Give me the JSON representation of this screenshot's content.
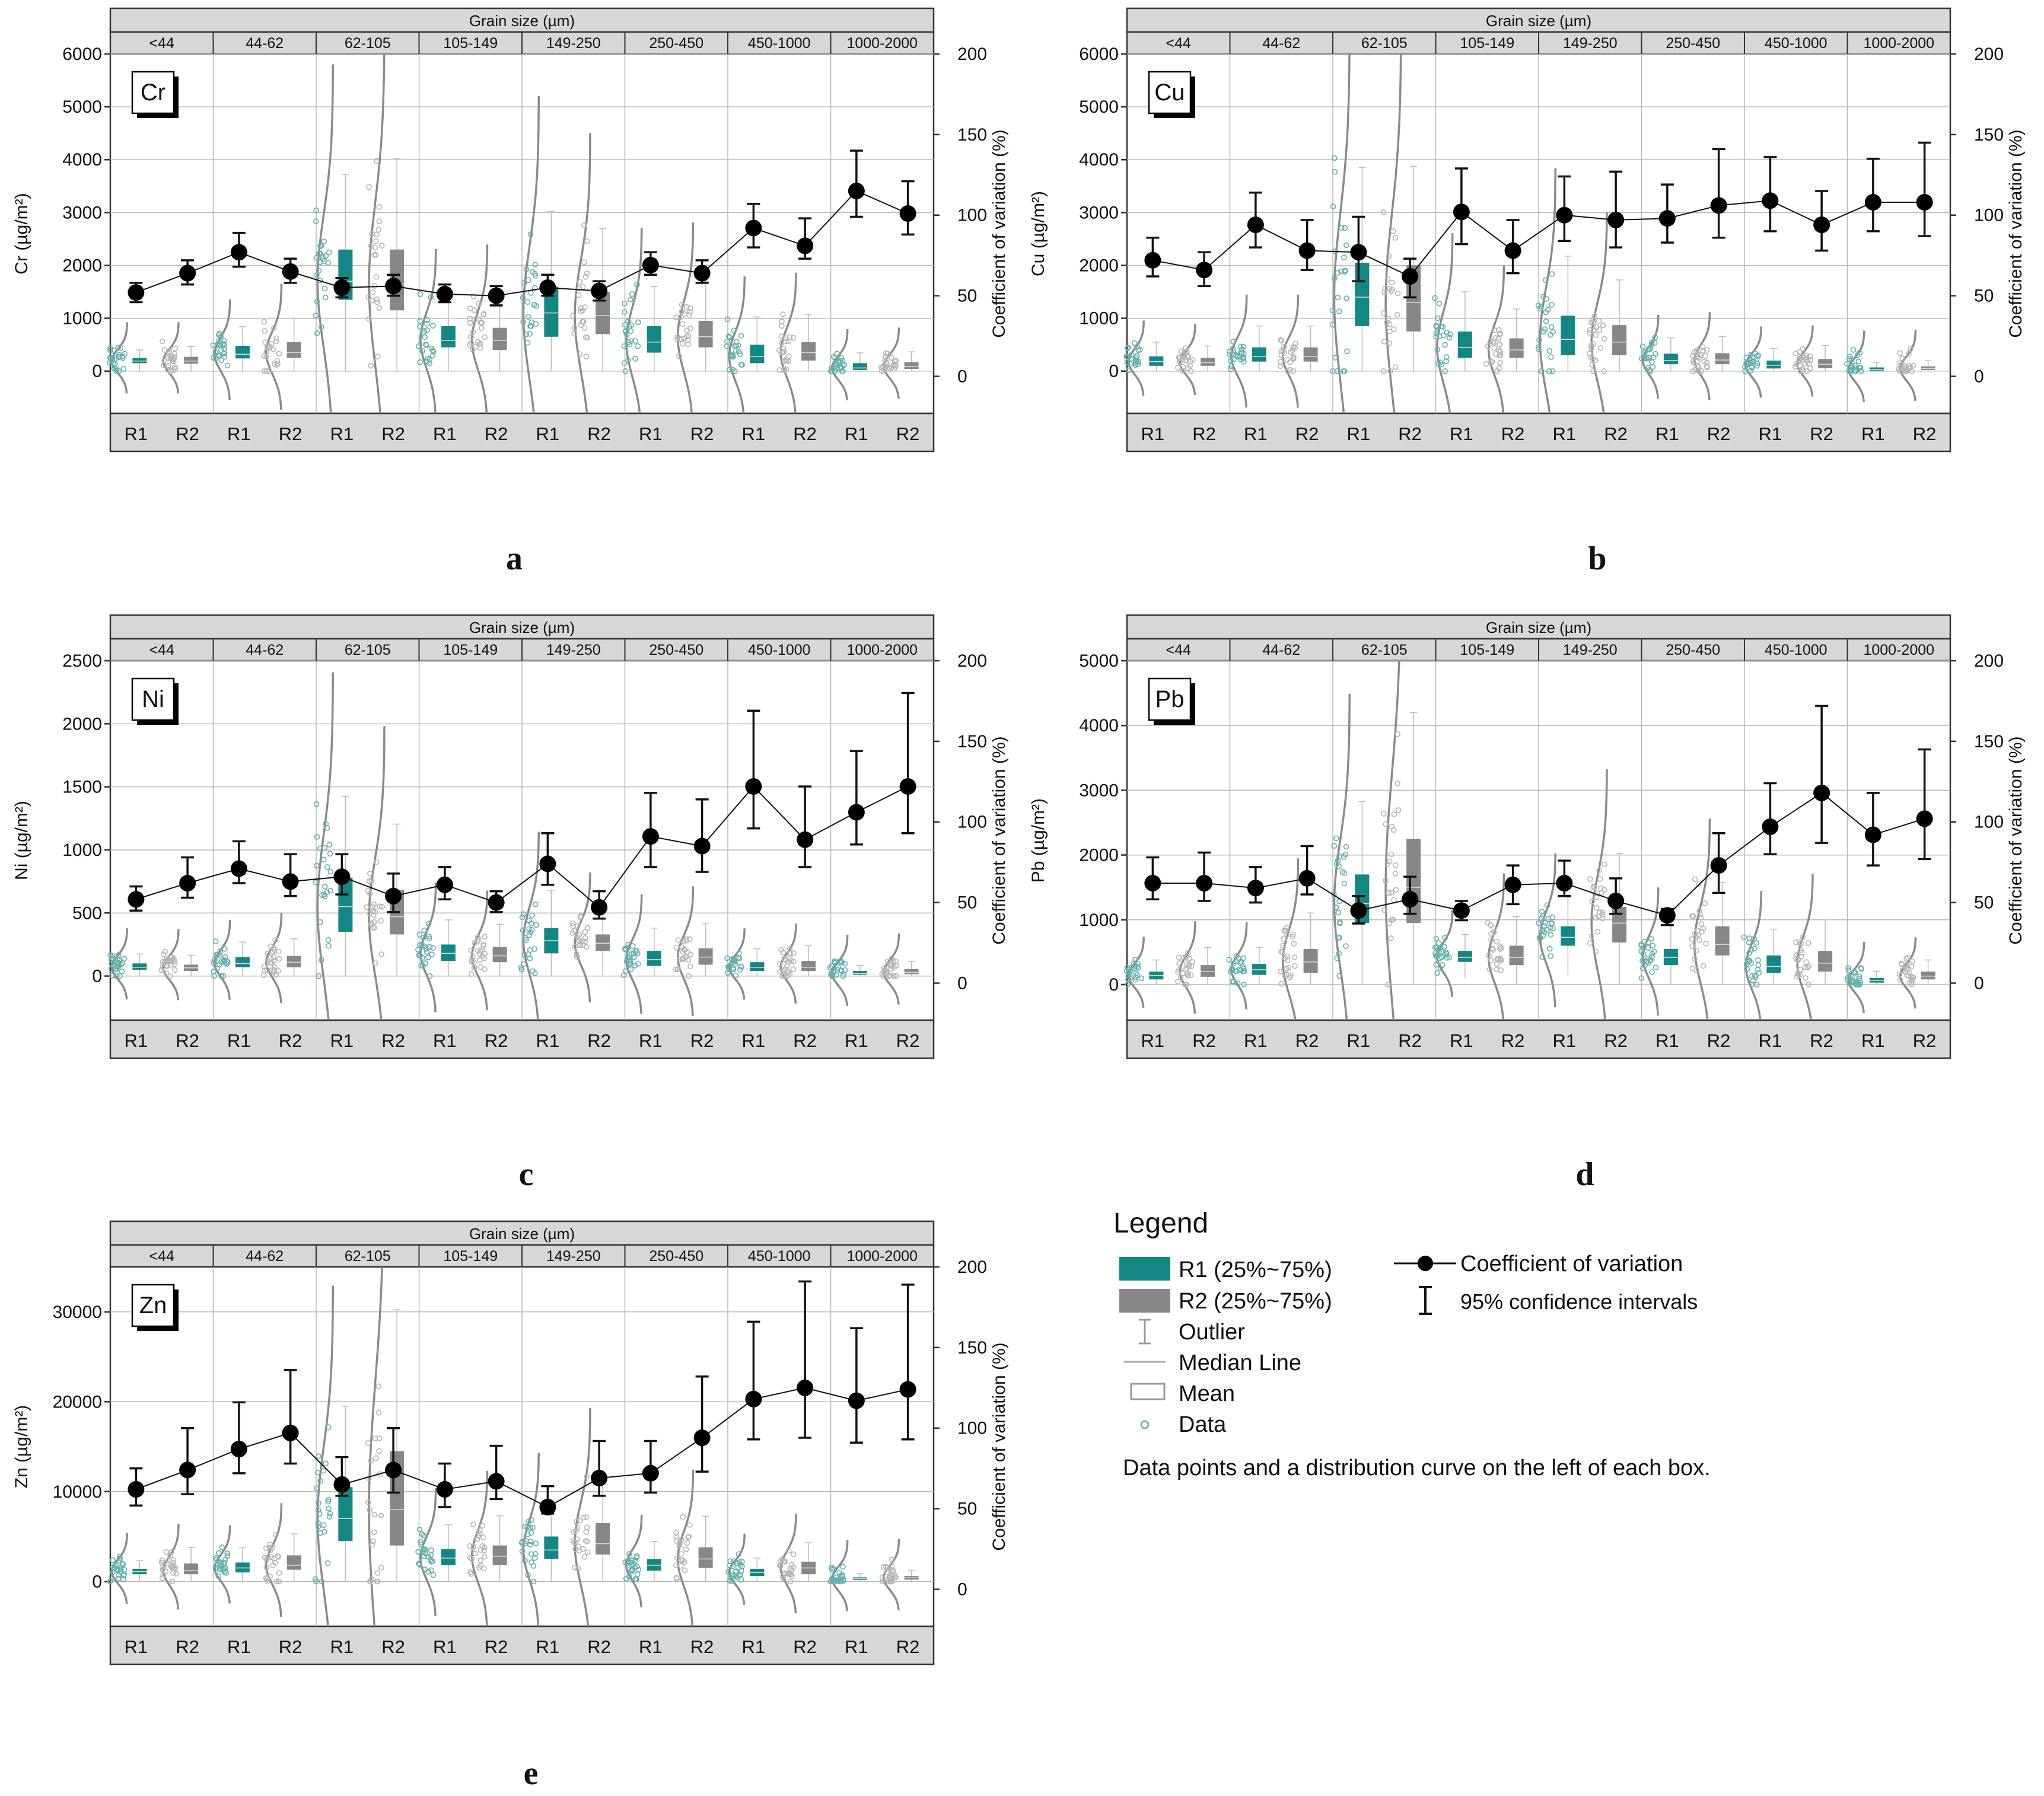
{
  "figure": {
    "grain_header": "Grain size (µm)",
    "grain_sizes": [
      "<44",
      "44-62",
      "62-105",
      "105-149",
      "149-250",
      "250-450",
      "450-1000",
      "1000-2000"
    ],
    "region_labels": [
      "R1",
      "R2"
    ],
    "right_axis_label": "Coefficient of variation (%)",
    "right_axis_ticks": [
      "200",
      "150",
      "100",
      "50",
      "0"
    ],
    "colors": {
      "R1": "#138784",
      "R2": "#878787",
      "cv": "#000000",
      "header": "#d7d7d7",
      "grid": "#b8b8b8"
    }
  },
  "legend": {
    "title": "Legend",
    "r1_box": "R1 (25%~75%)",
    "r2_box": "R2 (25%~75%)",
    "outlier": "Outlier",
    "median": "Median Line",
    "mean": "Mean",
    "data": "Data",
    "cv": "Coefficient of variation",
    "ci": "95% confidence intervals",
    "note": "Data points and a distribution curve on the left of each box."
  },
  "chart_data": [
    {
      "type": "box",
      "panel": "a",
      "element": "Cr",
      "ylabel": "Cr (µg/m²)",
      "ylim": [
        -800,
        6000
      ],
      "yticks": [
        "6000",
        "5000",
        "4000",
        "3000",
        "2000",
        "1000",
        "0"
      ],
      "ytick_values": [
        6000,
        5000,
        4000,
        3000,
        2000,
        1000,
        0
      ],
      "y2lim": [
        -23,
        200
      ],
      "groups": [
        "<44",
        "44-62",
        "62-105",
        "105-149",
        "149-250",
        "250-450",
        "450-1000",
        "1000-2000"
      ],
      "R1_box": [
        [
          150,
          190,
          250
        ],
        [
          240,
          320,
          480
        ],
        [
          1350,
          1700,
          2300
        ],
        [
          450,
          580,
          850
        ],
        [
          650,
          1100,
          1600
        ],
        [
          350,
          550,
          850
        ],
        [
          150,
          280,
          500
        ],
        [
          20,
          60,
          150
        ]
      ],
      "R2_box": [
        [
          140,
          190,
          270
        ],
        [
          250,
          350,
          550
        ],
        [
          1150,
          1650,
          2300
        ],
        [
          400,
          580,
          820
        ],
        [
          700,
          1050,
          1500
        ],
        [
          450,
          650,
          950
        ],
        [
          200,
          350,
          550
        ],
        [
          40,
          90,
          170
        ]
      ],
      "cv": [
        [
          52,
          46,
          58
        ],
        [
          64,
          57,
          72
        ],
        [
          77,
          68,
          89
        ],
        [
          65,
          58,
          73
        ],
        [
          55,
          49,
          61
        ],
        [
          56,
          50,
          63
        ],
        [
          51,
          46,
          57
        ],
        [
          50,
          44,
          56
        ],
        [
          55,
          50,
          63
        ],
        [
          53,
          47,
          59
        ],
        [
          69,
          63,
          77
        ],
        [
          64,
          58,
          72
        ],
        [
          92,
          80,
          107
        ],
        [
          81,
          73,
          98
        ],
        [
          115,
          99,
          140
        ],
        [
          101,
          88,
          121
        ]
      ]
    },
    {
      "type": "box",
      "panel": "b",
      "element": "Cu",
      "ylabel": "Cu (µg/m²)",
      "ylim": [
        -800,
        6000
      ],
      "yticks": [
        "6000",
        "5000",
        "4000",
        "3000",
        "2000",
        "1000",
        "0"
      ],
      "ytick_values": [
        6000,
        5000,
        4000,
        3000,
        2000,
        1000,
        0
      ],
      "y2lim": [
        -23,
        200
      ],
      "groups": [
        "<44",
        "44-62",
        "62-105",
        "105-149",
        "149-250",
        "250-450",
        "450-1000",
        "1000-2000"
      ],
      "R1_box": [
        [
          100,
          180,
          280
        ],
        [
          180,
          280,
          450
        ],
        [
          850,
          1400,
          2050
        ],
        [
          250,
          450,
          750
        ],
        [
          300,
          600,
          1050
        ],
        [
          130,
          200,
          330
        ],
        [
          50,
          110,
          200
        ],
        [
          10,
          30,
          70
        ]
      ],
      "R2_box": [
        [
          100,
          160,
          250
        ],
        [
          180,
          280,
          450
        ],
        [
          750,
          1300,
          2000
        ],
        [
          250,
          400,
          620
        ],
        [
          300,
          550,
          870
        ],
        [
          130,
          210,
          340
        ],
        [
          60,
          130,
          230
        ],
        [
          20,
          50,
          90
        ]
      ],
      "cv": [
        [
          72,
          62,
          86
        ],
        [
          66,
          56,
          77
        ],
        [
          94,
          80,
          114
        ],
        [
          78,
          66,
          97
        ],
        [
          77,
          59,
          99
        ],
        [
          62,
          49,
          73
        ],
        [
          102,
          82,
          129
        ],
        [
          78,
          64,
          97
        ],
        [
          100,
          84,
          124
        ],
        [
          97,
          80,
          127
        ],
        [
          98,
          83,
          119
        ],
        [
          106,
          86,
          141
        ],
        [
          109,
          90,
          136
        ],
        [
          94,
          78,
          115
        ],
        [
          108,
          90,
          135
        ],
        [
          108,
          87,
          145
        ]
      ]
    },
    {
      "type": "box",
      "panel": "c",
      "element": "Ni",
      "ylabel": "Ni (µg/m²)",
      "ylim": [
        -350,
        2500
      ],
      "yticks": [
        "2500",
        "2000",
        "1500",
        "1000",
        "500",
        "0"
      ],
      "ytick_values": [
        2500,
        2000,
        1500,
        1000,
        500,
        0
      ],
      "y2lim": [
        -23,
        200
      ],
      "groups": [
        "<44",
        "44-62",
        "62-105",
        "105-149",
        "149-250",
        "250-450",
        "450-1000",
        "1000-2000"
      ],
      "R1_box": [
        [
          50,
          70,
          100
        ],
        [
          70,
          100,
          150
        ],
        [
          350,
          550,
          780
        ],
        [
          120,
          180,
          250
        ],
        [
          180,
          280,
          380
        ],
        [
          80,
          130,
          200
        ],
        [
          40,
          70,
          110
        ],
        [
          10,
          20,
          40
        ]
      ],
      "R2_box": [
        [
          40,
          65,
          90
        ],
        [
          70,
          110,
          160
        ],
        [
          330,
          470,
          680
        ],
        [
          110,
          160,
          230
        ],
        [
          200,
          260,
          330
        ],
        [
          90,
          150,
          220
        ],
        [
          40,
          70,
          120
        ],
        [
          15,
          30,
          55
        ]
      ],
      "cv": [
        [
          52,
          45,
          60
        ],
        [
          62,
          53,
          78
        ],
        [
          71,
          62,
          88
        ],
        [
          63,
          54,
          80
        ],
        [
          66,
          55,
          80
        ],
        [
          54,
          44,
          68
        ],
        [
          61,
          52,
          72
        ],
        [
          50,
          44,
          57
        ],
        [
          74,
          61,
          93
        ],
        [
          47,
          40,
          57
        ],
        [
          91,
          72,
          118
        ],
        [
          85,
          69,
          114
        ],
        [
          122,
          96,
          169
        ],
        [
          89,
          72,
          122
        ],
        [
          106,
          86,
          144
        ],
        [
          122,
          93,
          180
        ]
      ]
    },
    {
      "type": "box",
      "panel": "d",
      "element": "Pb",
      "ylabel": "Pb (µg/m²)",
      "ylim": [
        -550,
        5000
      ],
      "yticks": [
        "5000",
        "4000",
        "3000",
        "2000",
        "1000",
        "0"
      ],
      "ytick_values": [
        5000,
        4000,
        3000,
        2000,
        1000,
        0
      ],
      "y2lim": [
        -23,
        200
      ],
      "groups": [
        "<44",
        "44-62",
        "62-105",
        "105-149",
        "149-250",
        "250-450",
        "450-1000",
        "1000-2000"
      ],
      "R1_box": [
        [
          80,
          140,
          200
        ],
        [
          150,
          230,
          320
        ],
        [
          950,
          1250,
          1700
        ],
        [
          350,
          420,
          520
        ],
        [
          600,
          730,
          900
        ],
        [
          300,
          420,
          550
        ],
        [
          180,
          280,
          450
        ],
        [
          30,
          60,
          100
        ]
      ],
      "R2_box": [
        [
          120,
          200,
          300
        ],
        [
          180,
          350,
          550
        ],
        [
          950,
          1500,
          2250
        ],
        [
          300,
          420,
          600
        ],
        [
          650,
          950,
          1200
        ],
        [
          450,
          620,
          900
        ],
        [
          200,
          330,
          520
        ],
        [
          80,
          130,
          200
        ]
      ],
      "cv": [
        [
          62,
          52,
          78
        ],
        [
          62,
          51,
          81
        ],
        [
          59,
          50,
          72
        ],
        [
          65,
          55,
          85
        ],
        [
          45,
          37,
          54
        ],
        [
          52,
          43,
          66
        ],
        [
          45,
          39,
          51
        ],
        [
          61,
          49,
          73
        ],
        [
          62,
          54,
          76
        ],
        [
          51,
          43,
          65
        ],
        [
          42,
          36,
          46
        ],
        [
          73,
          56,
          93
        ],
        [
          97,
          80,
          124
        ],
        [
          118,
          87,
          172
        ],
        [
          92,
          73,
          118
        ],
        [
          102,
          77,
          145
        ]
      ]
    },
    {
      "type": "box",
      "panel": "e",
      "element": "Zn",
      "ylabel": "Zn (µg/m²)",
      "ylim": [
        -5000,
        35000
      ],
      "yticks": [
        "30000",
        "20000",
        "10000",
        "0"
      ],
      "ytick_values": [
        30000,
        20000,
        10000,
        0
      ],
      "y2lim": [
        -23,
        200
      ],
      "groups": [
        "<44",
        "44-62",
        "62-105",
        "105-149",
        "149-250",
        "250-450",
        "450-1000",
        "1000-2000"
      ],
      "R1_box": [
        [
          800,
          1100,
          1400
        ],
        [
          1000,
          1500,
          2100
        ],
        [
          4500,
          7000,
          10500
        ],
        [
          1800,
          2600,
          3600
        ],
        [
          2500,
          3500,
          5000
        ],
        [
          1200,
          1800,
          2500
        ],
        [
          600,
          1000,
          1400
        ],
        [
          150,
          300,
          450
        ]
      ],
      "R2_box": [
        [
          800,
          1200,
          2000
        ],
        [
          1300,
          1800,
          2900
        ],
        [
          4000,
          8000,
          14500
        ],
        [
          1800,
          2800,
          4000
        ],
        [
          3000,
          4200,
          6500
        ],
        [
          1500,
          2500,
          3800
        ],
        [
          800,
          1500,
          2200
        ],
        [
          200,
          400,
          600
        ]
      ],
      "cv": [
        [
          62,
          52,
          75
        ],
        [
          74,
          59,
          100
        ],
        [
          87,
          72,
          116
        ],
        [
          97,
          78,
          136
        ],
        [
          65,
          58,
          82
        ],
        [
          74,
          60,
          100
        ],
        [
          62,
          51,
          78
        ],
        [
          67,
          56,
          89
        ],
        [
          51,
          47,
          64
        ],
        [
          69,
          58,
          92
        ],
        [
          72,
          60,
          92
        ],
        [
          94,
          73,
          132
        ],
        [
          118,
          93,
          166
        ],
        [
          125,
          94,
          191
        ],
        [
          117,
          91,
          162
        ],
        [
          124,
          93,
          189
        ]
      ]
    }
  ]
}
